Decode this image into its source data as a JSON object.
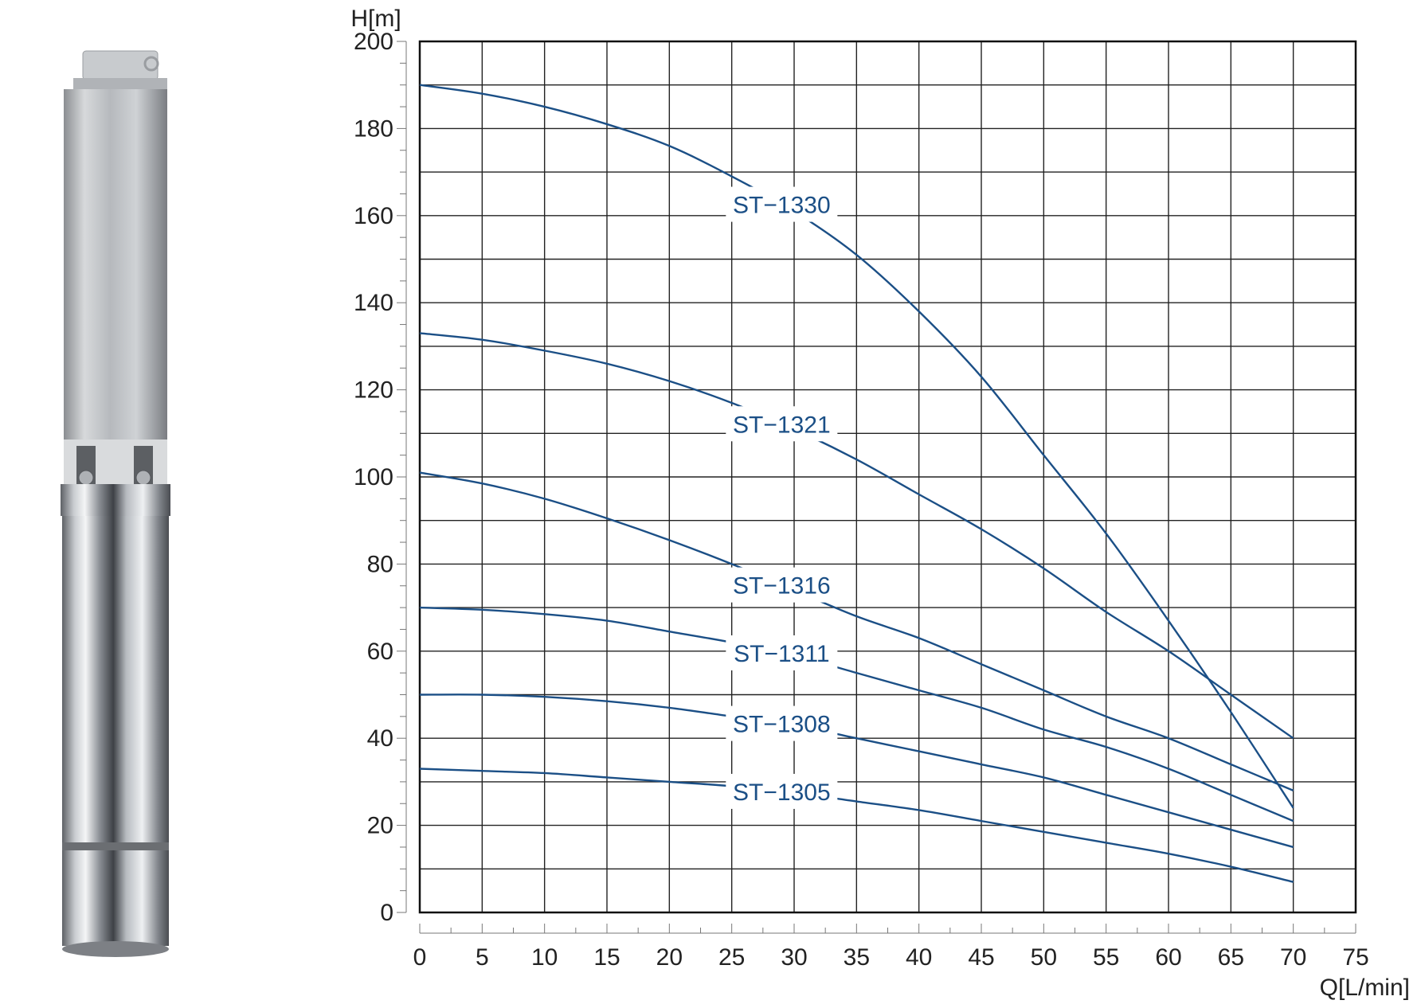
{
  "colors": {
    "curve": "#1b4f86",
    "grid": "#222222",
    "frame": "#111111"
  },
  "product_image": {
    "icon": "submersible-pump-image"
  },
  "chart_data": {
    "type": "line",
    "xlabel": "Q[L/min]",
    "ylabel": "H[m]",
    "xlim": [
      0,
      75
    ],
    "ylim": [
      0,
      200
    ],
    "x_ticks": [
      "0",
      "5",
      "10",
      "15",
      "20",
      "25",
      "30",
      "35",
      "40",
      "45",
      "50",
      "55",
      "60",
      "65",
      "70",
      "75"
    ],
    "y_ticks": [
      "0",
      "20",
      "40",
      "60",
      "80",
      "100",
      "120",
      "140",
      "160",
      "180",
      "200"
    ],
    "grid": true,
    "x_minor_step": 2.5,
    "y_minor_step": 5,
    "series": [
      {
        "name": "ST-1330",
        "x": [
          0,
          5,
          10,
          15,
          20,
          25,
          30,
          35,
          40,
          45,
          50,
          55,
          60,
          65,
          70
        ],
        "y": [
          190,
          188,
          185,
          181,
          176,
          169,
          161,
          151,
          138,
          123,
          105,
          87,
          67,
          46,
          24
        ]
      },
      {
        "name": "ST-1321",
        "x": [
          0,
          5,
          10,
          15,
          20,
          25,
          30,
          35,
          40,
          45,
          50,
          55,
          60,
          65,
          70
        ],
        "y": [
          133,
          131.5,
          129,
          126,
          122,
          117,
          111,
          104,
          96,
          88,
          79,
          69,
          60,
          50,
          40
        ]
      },
      {
        "name": "ST-1316",
        "x": [
          0,
          5,
          10,
          15,
          20,
          25,
          30,
          35,
          40,
          45,
          50,
          55,
          60,
          65,
          70
        ],
        "y": [
          101,
          98.5,
          95,
          90.5,
          85.5,
          80,
          74,
          68,
          63,
          57,
          51,
          45,
          40,
          34,
          28
        ]
      },
      {
        "name": "ST-1311",
        "x": [
          0,
          5,
          10,
          15,
          20,
          25,
          30,
          35,
          40,
          45,
          50,
          55,
          60,
          65,
          70
        ],
        "y": [
          70,
          69.5,
          68.5,
          67,
          64.5,
          62,
          59,
          55,
          51,
          47,
          42,
          38,
          33,
          27,
          21
        ]
      },
      {
        "name": "ST-1308",
        "x": [
          0,
          5,
          10,
          15,
          20,
          25,
          30,
          35,
          40,
          45,
          50,
          55,
          60,
          65,
          70
        ],
        "y": [
          50,
          50,
          49.5,
          48.5,
          47,
          45,
          43,
          40,
          37,
          34,
          31,
          27,
          23,
          19,
          15
        ]
      },
      {
        "name": "ST-1305",
        "x": [
          0,
          5,
          10,
          15,
          20,
          25,
          30,
          35,
          40,
          45,
          50,
          55,
          60,
          65,
          70
        ],
        "y": [
          33,
          32.5,
          32,
          31,
          30,
          29,
          27.5,
          25.5,
          23.5,
          21,
          18.5,
          16,
          13.5,
          10.5,
          7
        ]
      }
    ],
    "labels": [
      {
        "text": "ST−1330",
        "series": "ST-1330",
        "at_x": 29
      },
      {
        "text": "ST−1321",
        "series": "ST-1321",
        "at_x": 29
      },
      {
        "text": "ST−1316",
        "series": "ST-1316",
        "at_x": 29
      },
      {
        "text": "ST−1311",
        "series": "ST-1311",
        "at_x": 29
      },
      {
        "text": "ST−1308",
        "series": "ST-1308",
        "at_x": 29
      },
      {
        "text": "ST−1305",
        "series": "ST-1305",
        "at_x": 29
      }
    ]
  }
}
